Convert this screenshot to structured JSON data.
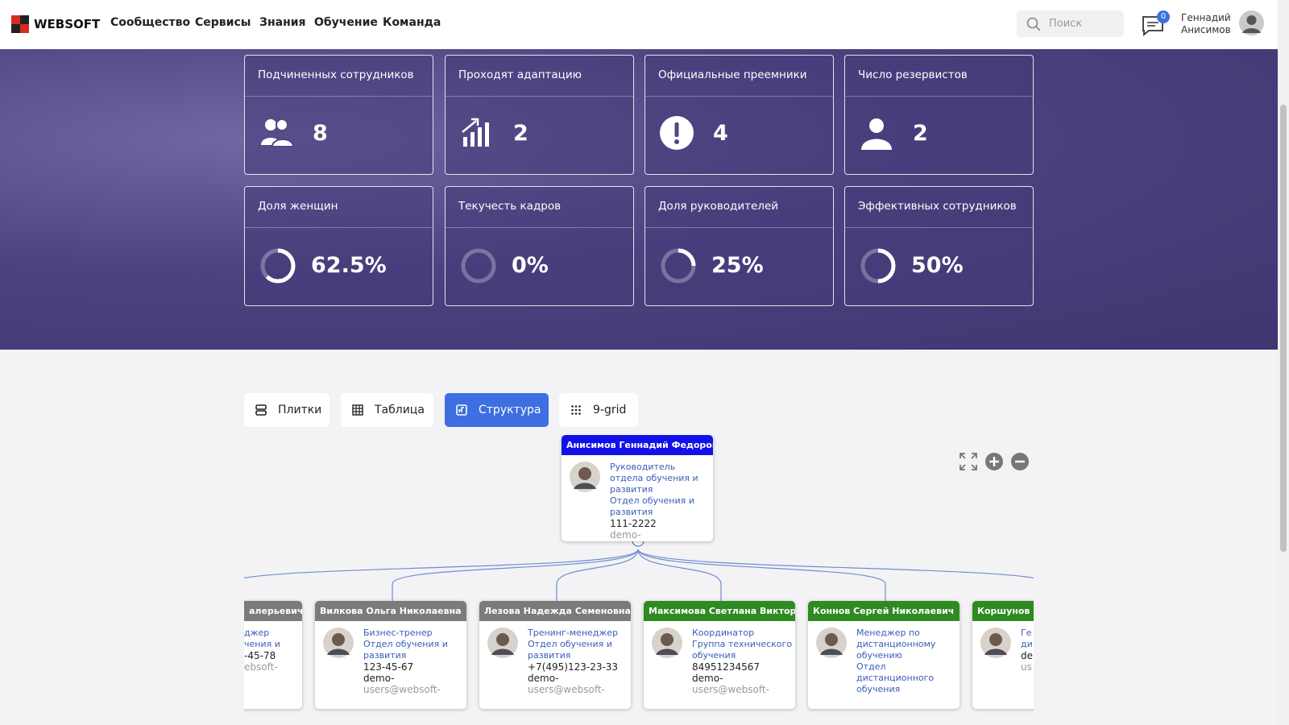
{
  "header": {
    "logo": "WEBSOFT",
    "nav": [
      "Сообщество",
      "Сервисы",
      "Знания",
      "Обучение",
      "Команда"
    ],
    "search_placeholder": "Поиск",
    "notifications": 0,
    "user": [
      "Геннадий",
      "Анисимов"
    ]
  },
  "stats": [
    {
      "title": "Подчиненных сотрудников",
      "value": 8
    },
    {
      "title": "Проходят адаптацию",
      "value": 2
    },
    {
      "title": "Официальные преемники",
      "value": 4
    },
    {
      "title": "Число резервистов",
      "value": 2
    },
    {
      "title": "Доля женщин",
      "value": 62.5,
      "label": "62.5%"
    },
    {
      "title": "Текучесть кадров",
      "value": 0,
      "label": "0%"
    },
    {
      "title": "Доля руководителей",
      "value": 25,
      "label": "25%"
    },
    {
      "title": "Эффективных сотрудников",
      "value": 50,
      "label": "50%"
    }
  ],
  "tabs": {
    "items": [
      "Плитки",
      "Таблица",
      "Структура",
      "9-grid"
    ],
    "active": "Структура"
  },
  "org": {
    "root": {
      "name": "Анисимов Геннадий Федорович",
      "color": "#1212e8",
      "info": [
        "Руководитель отдела обучения и развития",
        "Отдел обучения и развития"
      ],
      "contact": [
        "111-2222",
        "demo-"
      ]
    },
    "children": [
      {
        "name": "алерьевич",
        "color": "#7b7b7b",
        "info": [
          "джер",
          "чения и"
        ],
        "contact": [
          "-45-78",
          "ebsoft-"
        ]
      },
      {
        "name": "Вилкова Ольга Николаевна",
        "color": "#7b7b7b",
        "info": [
          "Бизнес-тренер",
          "Отдел обучения и развития"
        ],
        "contact": [
          "123-45-67",
          "demo-",
          "users@websoft-"
        ]
      },
      {
        "name": "Лезова Надежда Семеновна",
        "color": "#7b7b7b",
        "info": [
          "Тренинг-менеджер",
          "Отдел обучения и развития"
        ],
        "contact": [
          "+7(495)123-23-33",
          "demo-",
          "users@websoft-"
        ]
      },
      {
        "name": "Максимова Светлана Викторовна",
        "color": "#2f8a22",
        "info": [
          "Координатор",
          "Группа технического обучения"
        ],
        "contact": [
          "84951234567",
          "demo-",
          "users@websoft-"
        ]
      },
      {
        "name": "Коннов Сергей Николаевич",
        "color": "#2f8a22",
        "info": [
          "Менеджер по дистанционному обучению",
          "Отдел дистанционного обучения"
        ],
        "contact": []
      },
      {
        "name": "Коршунов Ки",
        "color": "#2f8a22",
        "info": [
          "Ге",
          "ди"
        ],
        "contact": [
          "de",
          "us"
        ]
      }
    ]
  }
}
